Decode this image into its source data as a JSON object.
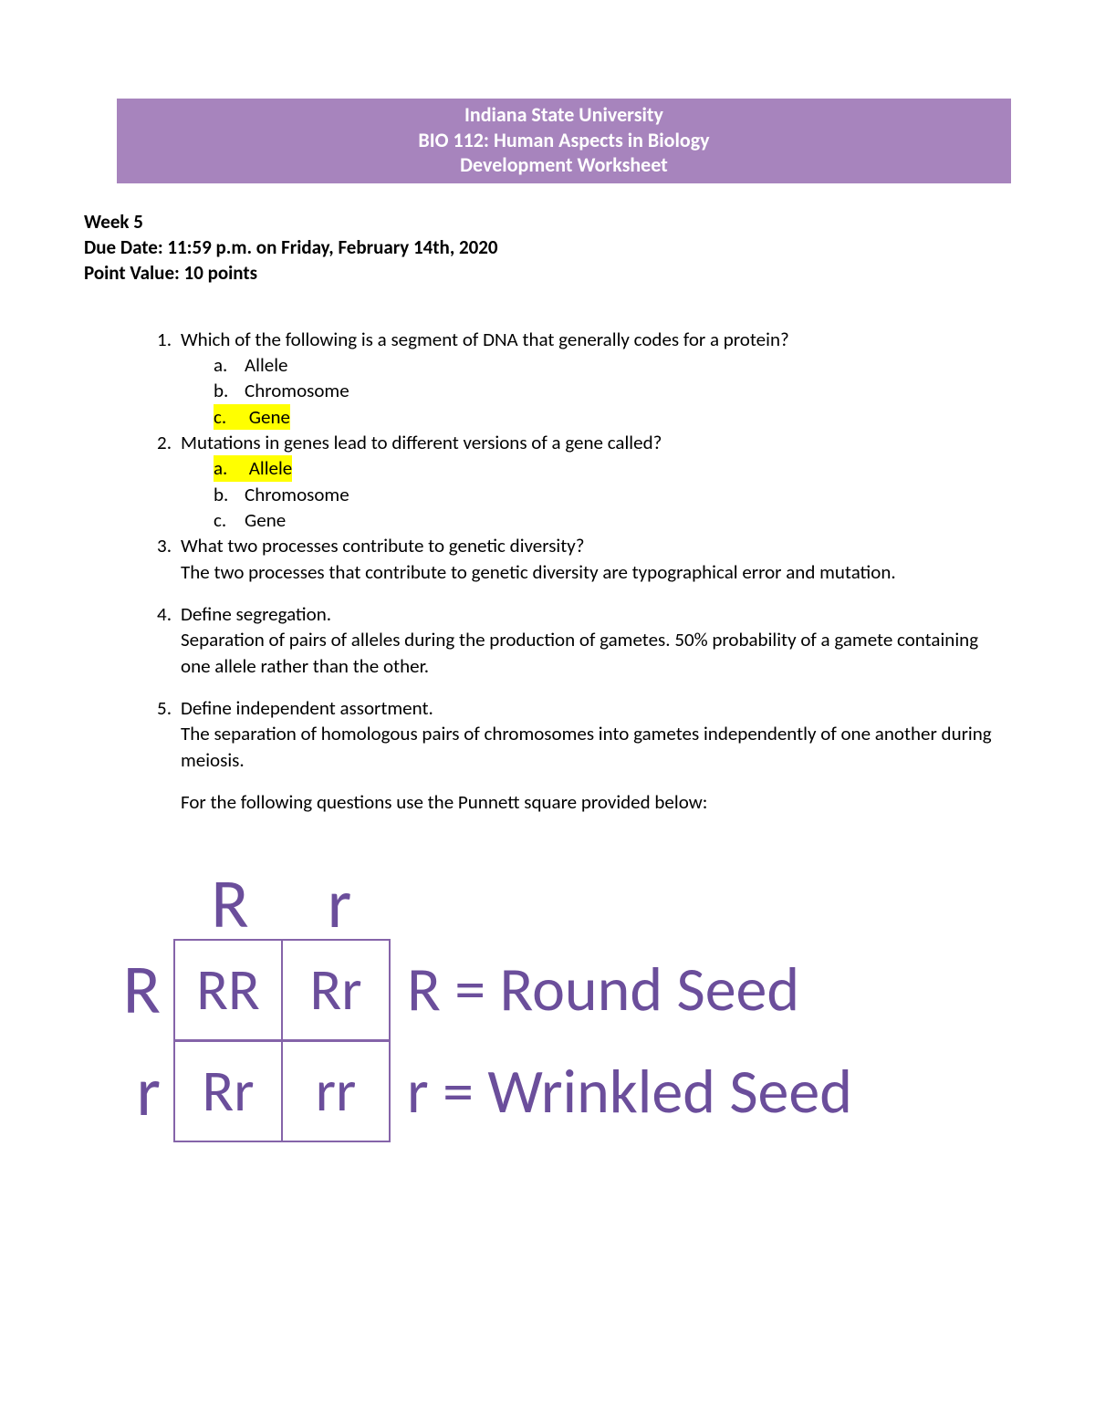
{
  "banner": {
    "line1": "Indiana State University",
    "line2": "BIO 112: Human Aspects in Biology",
    "line3": "Development Worksheet",
    "bg_color": "#a784bd",
    "text_color": "#ffffff"
  },
  "meta": {
    "week": "Week 5",
    "due": "Due Date: 11:59 p.m. on Friday, February 14th, 2020",
    "points": "Point Value: 10 points"
  },
  "q1": {
    "num": "1.",
    "text": "Which of the following is a segment of DNA that generally codes for a protein?",
    "a_l": "a.",
    "a_t": "Allele",
    "b_l": "b.",
    "b_t": "Chromosome",
    "c_l": "c.",
    "c_t": "Gene"
  },
  "q2": {
    "num": "2.",
    "text": "Mutations in genes lead to different versions of a gene called?",
    "a_l": "a.",
    "a_t": "Allele",
    "b_l": "b.",
    "b_t": "Chromosome",
    "c_l": "c.",
    "c_t": "Gene"
  },
  "q3": {
    "num": "3.",
    "text": "What two processes contribute to genetic diversity?",
    "ans": "The two processes that contribute to genetic diversity are typographical error and mutation."
  },
  "q4": {
    "num": "4.",
    "text": "Define segregation.",
    "ans": "Separation of pairs of alleles during the production of gametes. 50% probability of a gamete containing one allele rather than the other."
  },
  "q5": {
    "num": "5.",
    "text": "Define independent assortment.",
    "ans": "The separation of homologous pairs of chromosomes into gametes independently of one another during meiosis."
  },
  "instr": "For the following questions use the Punnett square provided below:",
  "punnett": {
    "color": "#6b4e9b",
    "border_color": "#8564a9",
    "top1": "R",
    "top2": "r",
    "side1": "R",
    "side2": "r",
    "c11": "RR",
    "c12": "Rr",
    "c21": "Rr",
    "c22": "rr",
    "legend1": "R = Round Seed",
    "legend2": "r = Wrinkled Seed"
  },
  "highlight_color": "#ffff00"
}
